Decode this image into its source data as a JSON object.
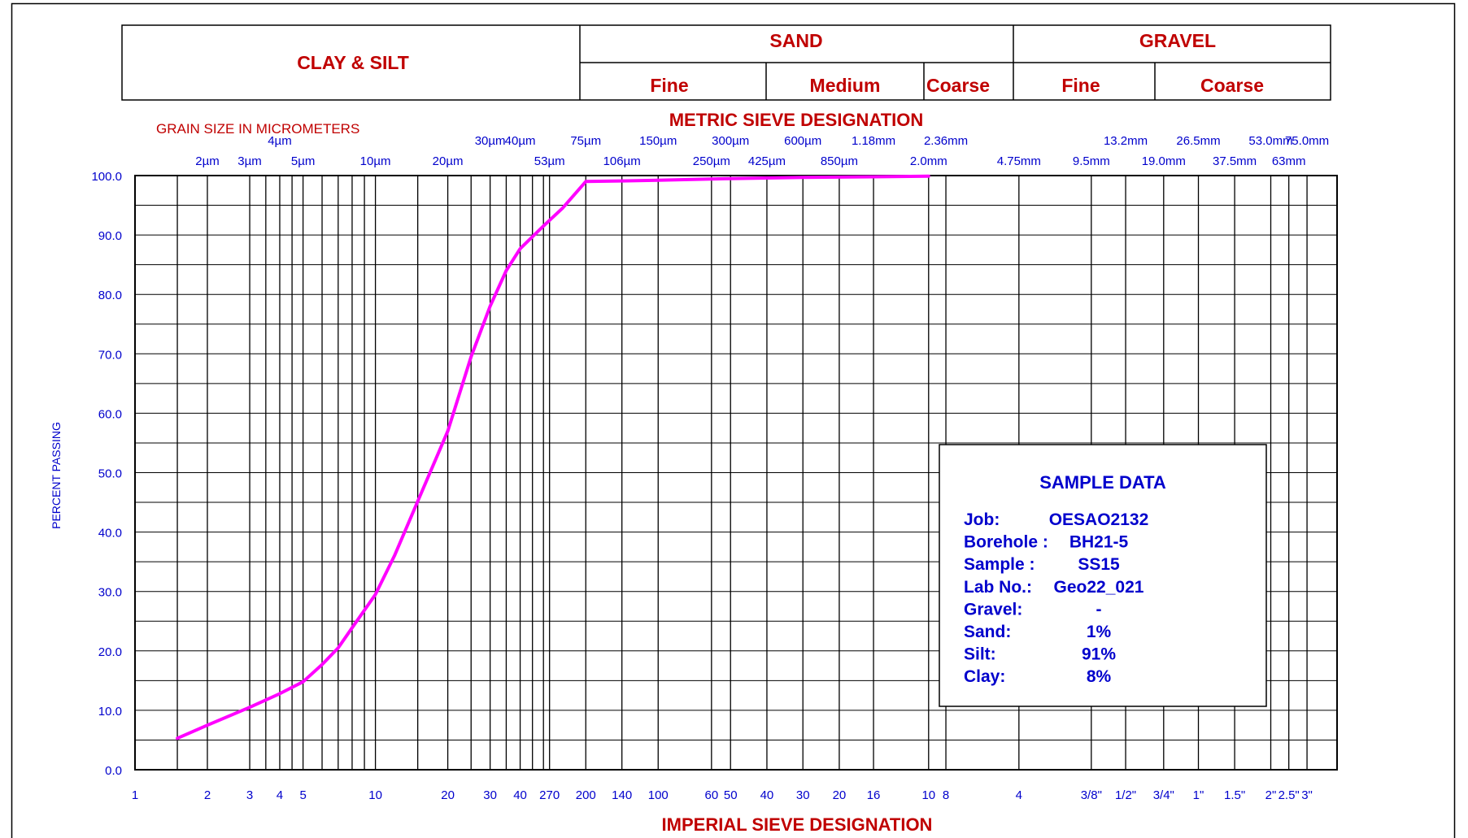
{
  "classification_header": {
    "clay_silt": "CLAY  &  SILT",
    "sand": "SAND",
    "gravel": "GRAVEL",
    "sand_fine": "Fine",
    "sand_medium": "Medium",
    "sand_coarse": "Coarse",
    "gravel_fine": "Fine",
    "gravel_coarse": "Coarse"
  },
  "metric_title": "METRIC SIEVE DESIGNATION",
  "imperial_title": "IMPERIAL SIEVE DESIGNATION",
  "grain_size_label": "GRAIN SIZE IN MICROMETERS",
  "sample_data": {
    "title": "SAMPLE DATA",
    "rows": [
      {
        "label": "Job:",
        "value": "OESAO2132"
      },
      {
        "label": "Borehole :",
        "value": "BH21-5"
      },
      {
        "label": "Sample :",
        "value": "SS15"
      },
      {
        "label": "Lab No.:",
        "value": "Geo22_021"
      },
      {
        "label": "Gravel:",
        "value": "-"
      },
      {
        "label": "Sand:",
        "value": "1%"
      },
      {
        "label": "Silt:",
        "value": "91%"
      },
      {
        "label": "Clay:",
        "value": "8%"
      }
    ]
  },
  "colors": {
    "curve": "#ff00ff",
    "label_red": "#c00000",
    "label_blue": "#0000cc",
    "axis": "#000000"
  },
  "chart_data": {
    "type": "line",
    "title": "",
    "xscale": "log",
    "xunit": "micrometers",
    "xlim": [
      1,
      100000
    ],
    "ylim": [
      0,
      100
    ],
    "ylabel": "PERCENT PASSING",
    "yticks": [
      0.0,
      10.0,
      20.0,
      30.0,
      40.0,
      50.0,
      60.0,
      70.0,
      80.0,
      90.0,
      100.0
    ],
    "ytick_labels": [
      "0.0",
      "10.0",
      "20.0",
      "30.0",
      "40.0",
      "50.0",
      "60.0",
      "70.0",
      "80.0",
      "90.0",
      "100.0"
    ],
    "grid": true,
    "gridlines_x": [
      1.5,
      2,
      3,
      3.5,
      4,
      4.5,
      5,
      6,
      7,
      8,
      9,
      10,
      15,
      20,
      25,
      30,
      35,
      40,
      45,
      50,
      53,
      75,
      106,
      150,
      250,
      300,
      425,
      600,
      850,
      1180,
      2000,
      2360,
      4750,
      9500,
      13200,
      19000,
      26500,
      37500,
      53000,
      63000,
      75000
    ],
    "metric_ticks_upper": [
      {
        "x": 4,
        "label": "4µm"
      },
      {
        "x": 30,
        "label": "30µm"
      },
      {
        "x": 40,
        "label": "40µm"
      },
      {
        "x": 75,
        "label": "75µm"
      },
      {
        "x": 150,
        "label": "150µm"
      },
      {
        "x": 300,
        "label": "300µm"
      },
      {
        "x": 600,
        "label": "600µm"
      },
      {
        "x": 1180,
        "label": "1.18mm"
      },
      {
        "x": 2360,
        "label": "2.36mm"
      },
      {
        "x": 13200,
        "label": "13.2mm"
      },
      {
        "x": 26500,
        "label": "26.5mm"
      },
      {
        "x": 53000,
        "label": "53.0mm"
      },
      {
        "x": 75000,
        "label": "75.0mm"
      }
    ],
    "metric_ticks_lower": [
      {
        "x": 2,
        "label": "2µm"
      },
      {
        "x": 3,
        "label": "3µm"
      },
      {
        "x": 5,
        "label": "5µm"
      },
      {
        "x": 10,
        "label": "10µm"
      },
      {
        "x": 20,
        "label": "20µm"
      },
      {
        "x": 53,
        "label": "53µm"
      },
      {
        "x": 106,
        "label": "106µm"
      },
      {
        "x": 250,
        "label": "250µm"
      },
      {
        "x": 425,
        "label": "425µm"
      },
      {
        "x": 850,
        "label": "850µm"
      },
      {
        "x": 2000,
        "label": "2.0mm"
      },
      {
        "x": 4750,
        "label": "4.75mm"
      },
      {
        "x": 9500,
        "label": "9.5mm"
      },
      {
        "x": 19000,
        "label": "19.0mm"
      },
      {
        "x": 37500,
        "label": "37.5mm"
      },
      {
        "x": 63000,
        "label": "63mm"
      }
    ],
    "imperial_ticks": [
      {
        "x": 1,
        "label": "1"
      },
      {
        "x": 2,
        "label": "2"
      },
      {
        "x": 3,
        "label": "3"
      },
      {
        "x": 4,
        "label": "4"
      },
      {
        "x": 5,
        "label": "5"
      },
      {
        "x": 10,
        "label": "10"
      },
      {
        "x": 20,
        "label": "20"
      },
      {
        "x": 30,
        "label": "30"
      },
      {
        "x": 40,
        "label": "40"
      },
      {
        "x": 53,
        "label": "270"
      },
      {
        "x": 75,
        "label": "200"
      },
      {
        "x": 106,
        "label": "140"
      },
      {
        "x": 150,
        "label": "100"
      },
      {
        "x": 250,
        "label": "60"
      },
      {
        "x": 300,
        "label": "50"
      },
      {
        "x": 425,
        "label": "40"
      },
      {
        "x": 600,
        "label": "30"
      },
      {
        "x": 850,
        "label": "20"
      },
      {
        "x": 1180,
        "label": "16"
      },
      {
        "x": 2000,
        "label": "10"
      },
      {
        "x": 2360,
        "label": "8"
      },
      {
        "x": 4750,
        "label": "4"
      },
      {
        "x": 9500,
        "label": "3/8\""
      },
      {
        "x": 13200,
        "label": "1/2\""
      },
      {
        "x": 19000,
        "label": "3/4\""
      },
      {
        "x": 26500,
        "label": "1\""
      },
      {
        "x": 37500,
        "label": "1.5\""
      },
      {
        "x": 53000,
        "label": "2\""
      },
      {
        "x": 63000,
        "label": "2.5\""
      },
      {
        "x": 75000,
        "label": "3\""
      }
    ],
    "series": [
      {
        "x": [
          1.5,
          2,
          3,
          4,
          5,
          6,
          7,
          8,
          10,
          12,
          15,
          20,
          25,
          30,
          35,
          40,
          50,
          60,
          75,
          106,
          150,
          300,
          600,
          1180,
          2000
        ],
        "y": [
          5.3,
          7.5,
          10.5,
          12.8,
          14.8,
          17.7,
          20.5,
          23.9,
          29.5,
          36.0,
          45.2,
          57.0,
          69.5,
          78.0,
          84.0,
          87.7,
          91.5,
          94.5,
          99.0,
          99.1,
          99.2,
          99.5,
          99.7,
          99.8,
          99.9
        ]
      }
    ]
  }
}
